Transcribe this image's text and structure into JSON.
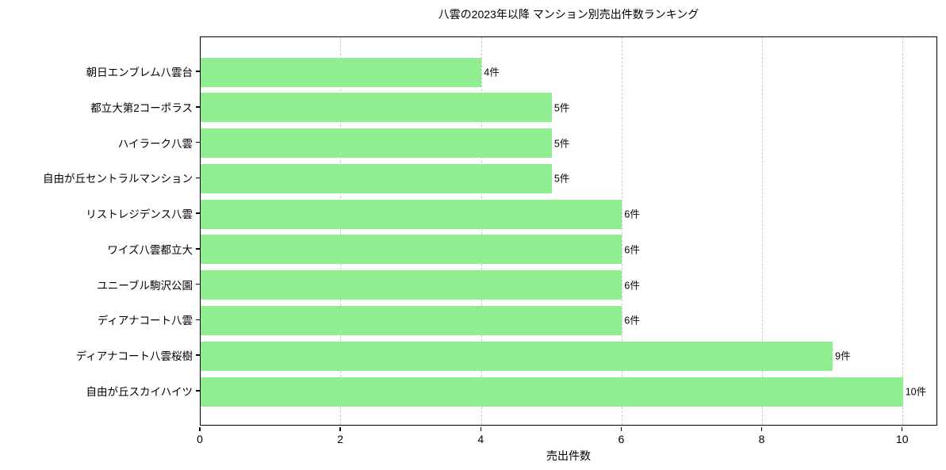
{
  "title": "八雲の2023年以降 マンション別売出件数ランキング",
  "chart_data": {
    "type": "bar",
    "orientation": "horizontal",
    "title": "八雲の2023年以降 マンション別売出件数ランキング",
    "xlabel": "売出件数",
    "ylabel": "",
    "categories": [
      "朝日エンブレム八雲台",
      "都立大第2コーポラス",
      "ハイラーク八雲",
      "自由が丘セントラルマンション",
      "リストレジデンス八雲",
      "ワイズ八雲都立大",
      "ユニーブル駒沢公園",
      "ディアナコート八雲",
      "ディアナコート八雲桜樹",
      "自由が丘スカイハイツ"
    ],
    "values": [
      4,
      5,
      5,
      5,
      6,
      6,
      6,
      6,
      9,
      10
    ],
    "value_labels": [
      "4件",
      "5件",
      "5件",
      "5件",
      "6件",
      "6件",
      "6件",
      "6件",
      "9件",
      "10件"
    ],
    "xlim": [
      0,
      10.5
    ],
    "x_ticks": [
      0,
      2,
      4,
      6,
      8,
      10
    ],
    "grid": "vertical-dashed",
    "legend": "none",
    "bar_color": "#90ee90",
    "grid_color": "#c9c9c9",
    "axis_color": "#000000",
    "text_color": "#000000"
  }
}
